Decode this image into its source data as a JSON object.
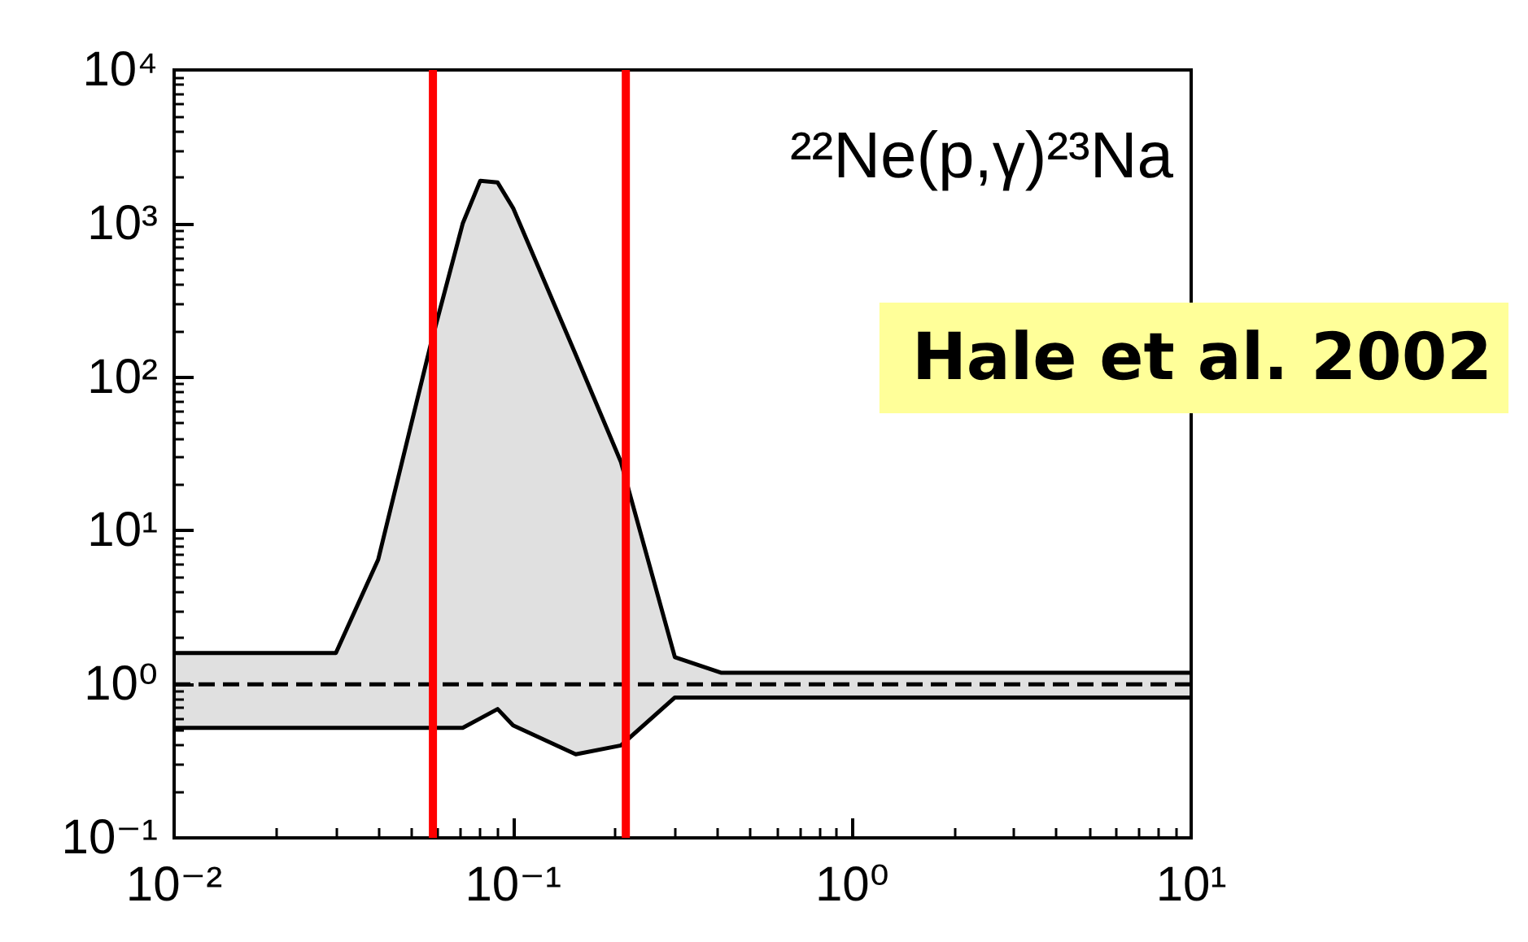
{
  "chart_data": {
    "type": "line",
    "x": [
      0.01,
      0.03,
      0.04,
      0.057,
      0.071,
      0.08,
      0.09,
      0.1,
      0.153,
      0.208,
      0.3,
      0.41,
      10
    ],
    "series": [
      {
        "color": "#000000",
        "values": [
          1.6,
          1.6,
          6.5,
          160,
          1000,
          1900,
          1850,
          1260,
          140,
          28,
          1.5,
          1.19,
          1.19
        ]
      },
      {
        "color": "#000000",
        "values": [
          0.52,
          0.52,
          0.52,
          0.52,
          0.52,
          0.6,
          0.69,
          0.54,
          0.35,
          0.4,
          0.82,
          0.82,
          0.82
        ]
      },
      {
        "color": "#000000",
        "line_style": "dashed",
        "values": [
          1.0,
          1.0,
          1.0,
          1.0,
          1.0,
          1.0,
          1.0,
          1.0,
          1.0,
          1.0,
          1.0,
          1.0,
          1.0
        ],
        "lower": [
          0.52,
          0.52,
          0.52,
          0.52,
          0.52,
          0.6,
          0.69,
          0.54,
          0.35,
          0.4,
          0.82,
          0.82,
          0.82
        ],
        "upper": [
          1.6,
          1.6,
          6.5,
          160,
          1000,
          1900,
          1850,
          1260,
          140,
          28,
          1.5,
          1.19,
          1.19
        ]
      }
    ],
    "log": "xy",
    "xlim": [
      0.01,
      10
    ],
    "ylim": [
      0.1,
      10000
    ],
    "xticks": [
      {
        "value": 0.01,
        "label": "10⁻²"
      },
      {
        "value": 0.1,
        "label": "10⁻¹"
      },
      {
        "value": 1,
        "label": "10⁰"
      },
      {
        "value": 10,
        "label": "10¹"
      }
    ],
    "yticks": [
      {
        "value": 0.1,
        "label": "10⁻¹"
      },
      {
        "value": 1,
        "label": "10⁰"
      },
      {
        "value": 10,
        "label": "10¹"
      },
      {
        "value": 100,
        "label": "10²"
      },
      {
        "value": 1000,
        "label": "10³"
      },
      {
        "value": 10000,
        "label": "10⁴"
      }
    ],
    "grid": false,
    "ref_lines": [
      {
        "axis": "x",
        "value": 0.058,
        "color": "#ff0000"
      },
      {
        "axis": "x",
        "value": 0.215,
        "color": "#ff0000"
      }
    ],
    "annotations": [
      "²²Ne(p,γ)²³Na",
      "Hale et al. 2002"
    ]
  }
}
